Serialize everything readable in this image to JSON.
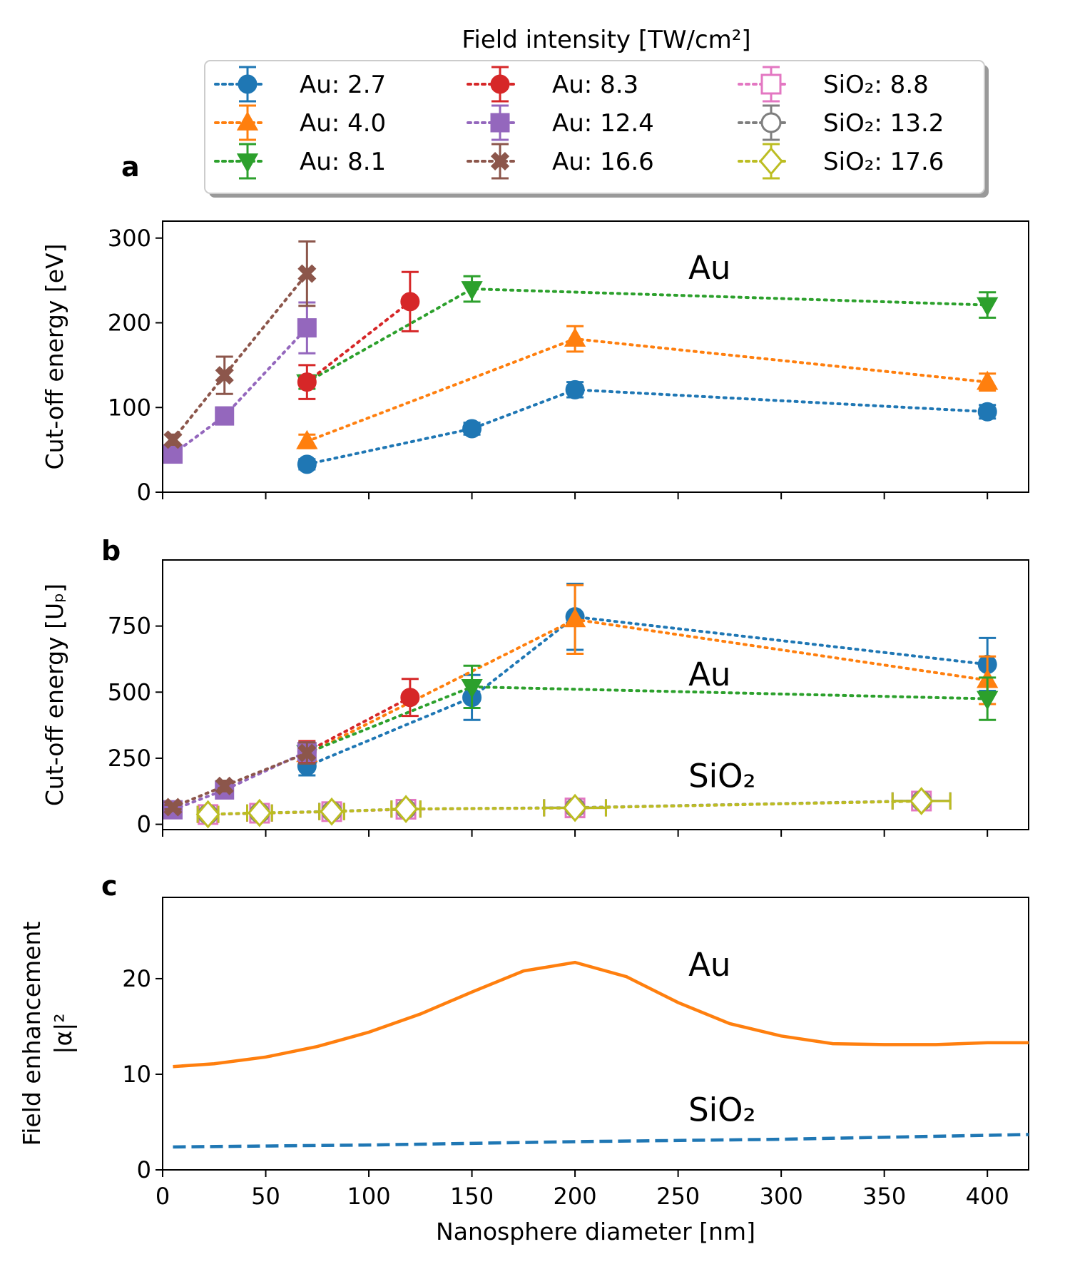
{
  "colors": {
    "au27": "#1f77b4",
    "au40": "#ff7f0e",
    "au81": "#2ca02c",
    "au83": "#d62728",
    "au124": "#9467bd",
    "au166": "#8c564b",
    "sio88": "#e377c2",
    "sio132": "#7f7f7f",
    "sio176": "#bcbd22"
  },
  "legend": {
    "title": "Field intensity [TW/cm²]",
    "entries": [
      {
        "key": "au27",
        "label": "Au: 2.7",
        "marker": "circle",
        "filled": true
      },
      {
        "key": "au40",
        "label": "Au: 4.0",
        "marker": "triangle-up",
        "filled": true
      },
      {
        "key": "au81",
        "label": "Au: 8.1",
        "marker": "triangle-down",
        "filled": true
      },
      {
        "key": "au83",
        "label": "Au: 8.3",
        "marker": "circle",
        "filled": true
      },
      {
        "key": "au124",
        "label": "Au: 12.4",
        "marker": "square",
        "filled": true
      },
      {
        "key": "au166",
        "label": "Au: 16.6",
        "marker": "x",
        "filled": true
      },
      {
        "key": "sio88",
        "label": "SiO₂: 8.8",
        "marker": "square",
        "filled": false
      },
      {
        "key": "sio132",
        "label": "SiO₂: 13.2",
        "marker": "circle",
        "filled": false
      },
      {
        "key": "sio176",
        "label": "SiO₂: 17.6",
        "marker": "diamond",
        "filled": false
      }
    ]
  },
  "chart_data": [
    {
      "panel": "a",
      "type": "line",
      "ylabel": "Cut-off energy [eV]",
      "xlim": [
        0,
        420
      ],
      "ylim": [
        0,
        320
      ],
      "yticks": [
        0,
        100,
        200,
        300
      ],
      "xticks": [
        0,
        50,
        100,
        150,
        200,
        250,
        300,
        350,
        400
      ],
      "annotations": [
        {
          "text": "Au",
          "x": 255,
          "y": 252
        }
      ],
      "series": [
        {
          "key": "au27",
          "x": [
            70,
            150,
            200,
            400
          ],
          "y": [
            33,
            75,
            121,
            95
          ],
          "yerr": [
            6,
            7,
            9,
            8
          ]
        },
        {
          "key": "au40",
          "x": [
            70,
            200,
            400
          ],
          "y": [
            60,
            181,
            130
          ],
          "yerr": [
            8,
            15,
            10
          ]
        },
        {
          "key": "au81",
          "x": [
            70,
            150,
            400
          ],
          "y": [
            130,
            240,
            221
          ],
          "yerr": [
            8,
            15,
            15
          ]
        },
        {
          "key": "au83",
          "x": [
            70,
            120
          ],
          "y": [
            130,
            225
          ],
          "yerr": [
            20,
            35
          ]
        },
        {
          "key": "au124",
          "x": [
            5,
            30,
            70
          ],
          "y": [
            45,
            90,
            194
          ],
          "yerr": [
            8,
            10,
            30
          ]
        },
        {
          "key": "au166",
          "x": [
            5,
            30,
            70
          ],
          "y": [
            62,
            138,
            258
          ],
          "yerr": [
            6,
            22,
            38
          ]
        }
      ]
    },
    {
      "panel": "b",
      "type": "line",
      "ylabel": "Cut-off energy [Uₚ]",
      "xlim": [
        0,
        420
      ],
      "ylim": [
        -20,
        1000
      ],
      "yticks": [
        0,
        250,
        500,
        750
      ],
      "xticks": [
        0,
        50,
        100,
        150,
        200,
        250,
        300,
        350,
        400
      ],
      "annotations": [
        {
          "text": "Au",
          "x": 255,
          "y": 525
        },
        {
          "text": "SiO₂",
          "x": 255,
          "y": 140
        }
      ],
      "series": [
        {
          "key": "au27",
          "x": [
            70,
            150,
            200,
            400
          ],
          "y": [
            220,
            480,
            785,
            605
          ],
          "yerr": [
            35,
            85,
            125,
            100
          ]
        },
        {
          "key": "au40",
          "x": [
            70,
            200,
            400
          ],
          "y": [
            265,
            775,
            545
          ],
          "yerr": [
            30,
            130,
            90
          ]
        },
        {
          "key": "au81",
          "x": [
            70,
            150,
            400
          ],
          "y": [
            270,
            520,
            475
          ],
          "yerr": [
            25,
            80,
            80
          ]
        },
        {
          "key": "au83",
          "x": [
            70,
            120
          ],
          "y": [
            275,
            480
          ],
          "yerr": [
            40,
            70
          ]
        },
        {
          "key": "au124",
          "x": [
            5,
            30,
            70
          ],
          "y": [
            55,
            130,
            275
          ],
          "yerr": [
            10,
            15,
            35
          ]
        },
        {
          "key": "au166",
          "x": [
            5,
            30,
            70
          ],
          "y": [
            65,
            145,
            270
          ],
          "yerr": [
            8,
            20,
            40
          ]
        },
        {
          "key": "sio88",
          "x": [
            22,
            47,
            82,
            118,
            200,
            368
          ],
          "y": [
            37,
            42,
            48,
            57,
            62,
            88
          ],
          "xerr": [
            5,
            6,
            6,
            7,
            15,
            14
          ]
        },
        {
          "key": "sio132",
          "x": [
            22,
            47,
            82,
            118,
            200,
            368
          ],
          "y": [
            38,
            43,
            49,
            58,
            63,
            89
          ],
          "xerr": [
            5,
            6,
            6,
            7,
            15,
            14
          ]
        },
        {
          "key": "sio176",
          "x": [
            22,
            47,
            82,
            118,
            200,
            368
          ],
          "y": [
            38,
            43,
            48,
            58,
            62,
            88
          ],
          "xerr": [
            5,
            6,
            6,
            7,
            15,
            14
          ]
        }
      ]
    },
    {
      "panel": "c",
      "type": "line",
      "ylabel": "Field enhancement",
      "ylabel2": "|α|²",
      "xlabel": "Nanosphere diameter [nm]",
      "xlim": [
        0,
        420
      ],
      "ylim": [
        0,
        28.5
      ],
      "yticks": [
        0,
        10,
        20
      ],
      "xticks": [
        0,
        50,
        100,
        150,
        200,
        250,
        300,
        350,
        400
      ],
      "annotations": [
        {
          "text": "Au",
          "x": 255,
          "y": 20.3
        },
        {
          "text": "SiO₂",
          "x": 255,
          "y": 5.1
        }
      ],
      "series": [
        {
          "name": "Au",
          "color": "#ff7f0e",
          "style": "solid",
          "x": [
            5,
            25,
            50,
            75,
            100,
            125,
            150,
            175,
            200,
            225,
            250,
            275,
            300,
            325,
            350,
            375,
            400,
            420
          ],
          "y": [
            10.8,
            11.1,
            11.8,
            12.9,
            14.4,
            16.3,
            18.6,
            20.8,
            21.7,
            20.2,
            17.5,
            15.3,
            14.0,
            13.2,
            13.1,
            13.1,
            13.3,
            13.3
          ]
        },
        {
          "name": "SiO₂",
          "color": "#1f77b4",
          "style": "dashed",
          "x": [
            5,
            100,
            200,
            300,
            420
          ],
          "y": [
            2.4,
            2.6,
            2.95,
            3.2,
            3.7
          ]
        }
      ]
    }
  ]
}
